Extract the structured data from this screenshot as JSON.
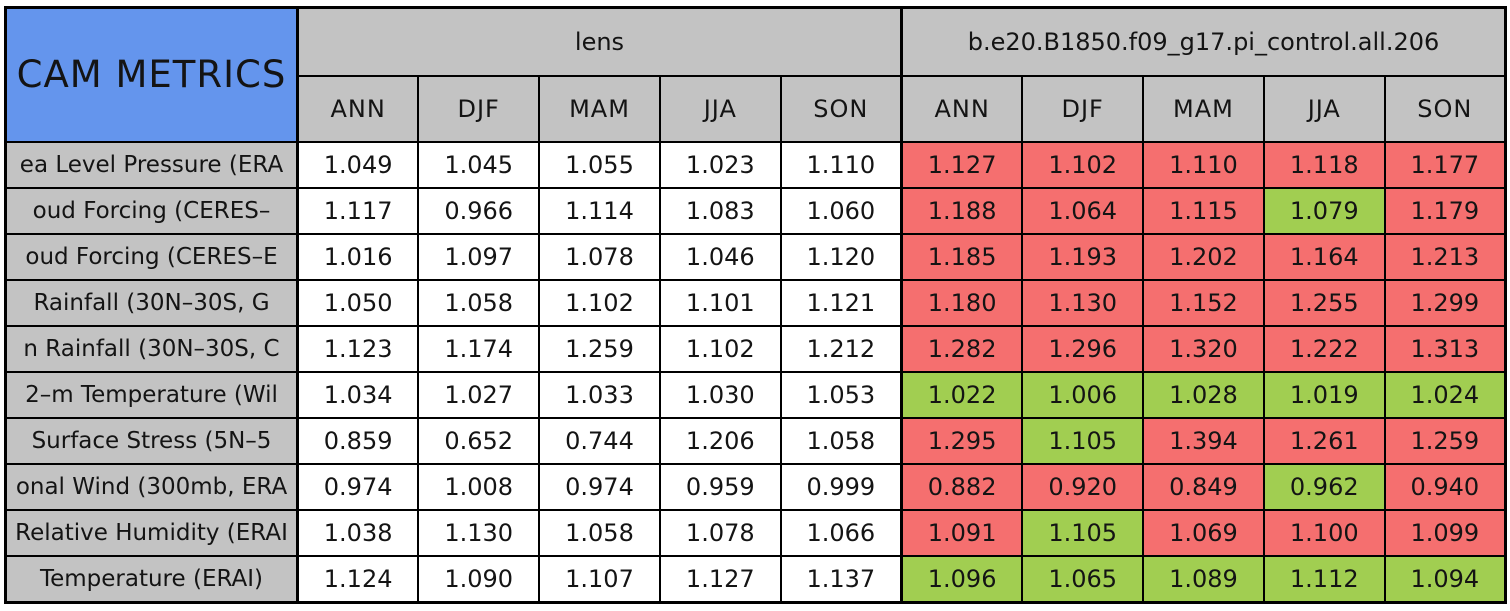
{
  "colors": {
    "header_blue": "#6495ED",
    "header_gray": "#C3C3C3",
    "cell_red": "#F56F6F",
    "cell_green": "#A1CE51",
    "lens_cell_white": "#FFFFFF",
    "border_black": "#000000"
  },
  "chart_data": {
    "type": "table",
    "title": "CAM METRICS",
    "column_groups": [
      {
        "label": "lens",
        "columns": [
          "ANN",
          "DJF",
          "MAM",
          "JJA",
          "SON"
        ]
      },
      {
        "label": "b.e20.B1850.f09_g17.pi_control.all.206",
        "columns": [
          "ANN",
          "DJF",
          "MAM",
          "JJA",
          "SON"
        ]
      }
    ],
    "rows": [
      {
        "label": "ea Level Pressure (ERA",
        "lens": [
          "1.049",
          "1.045",
          "1.055",
          "1.023",
          "1.110"
        ],
        "control": [
          "1.127",
          "1.102",
          "1.110",
          "1.118",
          "1.177"
        ],
        "status": [
          "worse",
          "worse",
          "worse",
          "worse",
          "worse"
        ]
      },
      {
        "label": "oud Forcing (CERES–",
        "lens": [
          "1.117",
          "0.966",
          "1.114",
          "1.083",
          "1.060"
        ],
        "control": [
          "1.188",
          "1.064",
          "1.115",
          "1.079",
          "1.179"
        ],
        "status": [
          "worse",
          "worse",
          "worse",
          "better",
          "worse"
        ]
      },
      {
        "label": "oud Forcing (CERES–E",
        "lens": [
          "1.016",
          "1.097",
          "1.078",
          "1.046",
          "1.120"
        ],
        "control": [
          "1.185",
          "1.193",
          "1.202",
          "1.164",
          "1.213"
        ],
        "status": [
          "worse",
          "worse",
          "worse",
          "worse",
          "worse"
        ]
      },
      {
        "label": "Rainfall (30N–30S, G",
        "lens": [
          "1.050",
          "1.058",
          "1.102",
          "1.101",
          "1.121"
        ],
        "control": [
          "1.180",
          "1.130",
          "1.152",
          "1.255",
          "1.299"
        ],
        "status": [
          "worse",
          "worse",
          "worse",
          "worse",
          "worse"
        ]
      },
      {
        "label": "n Rainfall (30N–30S, C",
        "lens": [
          "1.123",
          "1.174",
          "1.259",
          "1.102",
          "1.212"
        ],
        "control": [
          "1.282",
          "1.296",
          "1.320",
          "1.222",
          "1.313"
        ],
        "status": [
          "worse",
          "worse",
          "worse",
          "worse",
          "worse"
        ]
      },
      {
        "label": "2–m Temperature (Wil",
        "lens": [
          "1.034",
          "1.027",
          "1.033",
          "1.030",
          "1.053"
        ],
        "control": [
          "1.022",
          "1.006",
          "1.028",
          "1.019",
          "1.024"
        ],
        "status": [
          "better",
          "better",
          "better",
          "better",
          "better"
        ]
      },
      {
        "label": "Surface Stress (5N–5",
        "lens": [
          "0.859",
          "0.652",
          "0.744",
          "1.206",
          "1.058"
        ],
        "control": [
          "1.295",
          "1.105",
          "1.394",
          "1.261",
          "1.259"
        ],
        "status": [
          "worse",
          "better",
          "worse",
          "worse",
          "worse"
        ]
      },
      {
        "label": "onal Wind (300mb, ERA",
        "lens": [
          "0.974",
          "1.008",
          "0.974",
          "0.959",
          "0.999"
        ],
        "control": [
          "0.882",
          "0.920",
          "0.849",
          "0.962",
          "0.940"
        ],
        "status": [
          "worse",
          "worse",
          "worse",
          "better",
          "worse"
        ]
      },
      {
        "label": "Relative Humidity (ERAI",
        "lens": [
          "1.038",
          "1.130",
          "1.058",
          "1.078",
          "1.066"
        ],
        "control": [
          "1.091",
          "1.105",
          "1.069",
          "1.100",
          "1.099"
        ],
        "status": [
          "worse",
          "better",
          "worse",
          "worse",
          "worse"
        ]
      },
      {
        "label": "Temperature (ERAI)",
        "lens": [
          "1.124",
          "1.090",
          "1.107",
          "1.127",
          "1.137"
        ],
        "control": [
          "1.096",
          "1.065",
          "1.089",
          "1.112",
          "1.094"
        ],
        "status": [
          "better",
          "better",
          "better",
          "better",
          "better"
        ]
      }
    ]
  }
}
